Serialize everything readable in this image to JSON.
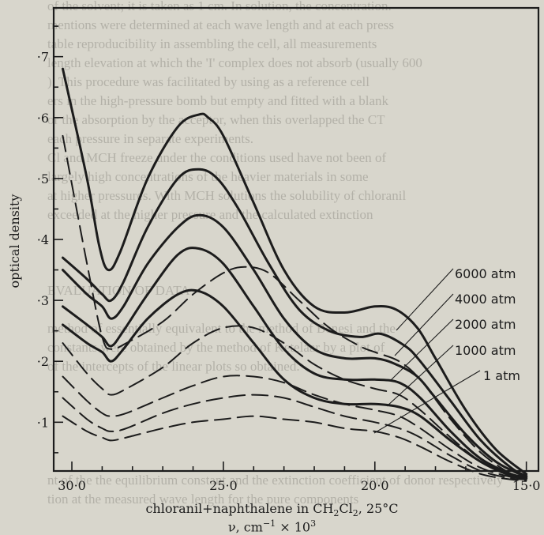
{
  "chart_data": {
    "type": "line",
    "ylabel": "optical density",
    "caption_line1_a": "chloranil+naphthalene in CH",
    "caption_line1_sub2a": "2",
    "caption_line1_b": "Cl",
    "caption_line1_sub2b": "2",
    "caption_line1_c": ", 25°C",
    "xlabel_a": "ν, cm",
    "xlabel_sup1": "−1",
    "xlabel_b": " × 10",
    "xlabel_sup2": "3",
    "xlim": [
      30.6,
      14.6
    ],
    "ylim": [
      0.02,
      0.78
    ],
    "x_ticks": [
      30,
      25,
      20,
      15
    ],
    "x_tick_labels": [
      "30·0",
      "25·0",
      "20·0",
      "15·0"
    ],
    "y_ticks": [
      0.1,
      0.2,
      0.3,
      0.4,
      0.5,
      0.6,
      0.7
    ],
    "y_tick_labels": [
      "·1",
      "·2",
      "·3",
      "·4",
      "·5",
      "·6",
      "·7"
    ],
    "legend": [
      "6000 atm",
      "4000 atm",
      "2000 atm",
      "1000 atm",
      "1 atm"
    ],
    "series": [
      {
        "style": "solid",
        "x": [
          30.3,
          29.5,
          29.1,
          28.8,
          28.4,
          27.5,
          26.5,
          25.8,
          25.5,
          25.0,
          24.0,
          23.0,
          22.0,
          21.0,
          20.0,
          19.3,
          18.6,
          18.0,
          17.0,
          16.0,
          15.0
        ],
        "y": [
          0.68,
          0.5,
          0.39,
          0.35,
          0.38,
          0.5,
          0.585,
          0.605,
          0.6,
          0.57,
          0.46,
          0.35,
          0.29,
          0.28,
          0.29,
          0.285,
          0.255,
          0.205,
          0.12,
          0.055,
          0.015
        ]
      },
      {
        "style": "solid",
        "x": [
          30.3,
          29.5,
          29.0,
          28.7,
          28.3,
          27.5,
          26.5,
          25.8,
          25.2,
          24.5,
          23.5,
          22.5,
          21.5,
          20.5,
          19.8,
          19.0,
          18.5,
          17.5,
          16.5,
          15.5,
          15.0
        ],
        "y": [
          0.37,
          0.335,
          0.31,
          0.3,
          0.33,
          0.42,
          0.5,
          0.515,
          0.5,
          0.45,
          0.36,
          0.285,
          0.25,
          0.24,
          0.245,
          0.225,
          0.2,
          0.135,
          0.07,
          0.025,
          0.012
        ]
      },
      {
        "style": "solid",
        "x": [
          30.3,
          29.5,
          29.0,
          28.7,
          28.3,
          27.5,
          26.5,
          25.8,
          25.0,
          24.0,
          23.0,
          22.0,
          21.0,
          20.0,
          19.3,
          18.6,
          18.0,
          17.0,
          16.0,
          15.0
        ],
        "y": [
          0.35,
          0.31,
          0.29,
          0.27,
          0.29,
          0.36,
          0.42,
          0.44,
          0.42,
          0.35,
          0.27,
          0.22,
          0.205,
          0.205,
          0.195,
          0.175,
          0.14,
          0.08,
          0.035,
          0.01
        ]
      },
      {
        "style": "solid",
        "x": [
          30.3,
          29.5,
          29.0,
          28.7,
          28.3,
          27.5,
          26.5,
          25.8,
          25.0,
          24.0,
          23.0,
          22.0,
          21.0,
          20.0,
          19.2,
          18.5,
          17.5,
          16.5,
          15.5,
          15.0
        ],
        "y": [
          0.29,
          0.26,
          0.24,
          0.225,
          0.25,
          0.31,
          0.375,
          0.385,
          0.36,
          0.29,
          0.22,
          0.18,
          0.17,
          0.17,
          0.165,
          0.14,
          0.085,
          0.04,
          0.015,
          0.01
        ]
      },
      {
        "style": "solid",
        "x": [
          30.3,
          29.5,
          29.0,
          28.7,
          28.3,
          27.5,
          26.5,
          25.8,
          25.0,
          24.0,
          23.0,
          22.0,
          21.0,
          20.0,
          19.2,
          18.5,
          17.5,
          16.5,
          15.5,
          15.0
        ],
        "y": [
          0.26,
          0.23,
          0.215,
          0.2,
          0.22,
          0.27,
          0.31,
          0.315,
          0.29,
          0.23,
          0.17,
          0.14,
          0.13,
          0.13,
          0.125,
          0.11,
          0.07,
          0.035,
          0.012,
          0.008
        ]
      },
      {
        "style": "dashed",
        "x": [
          30.3,
          29.5,
          29.0,
          28.7,
          28.2,
          27.0,
          26.0,
          25.0,
          24.3,
          23.5,
          22.5,
          21.5,
          20.5,
          20.0,
          19.2,
          18.5,
          17.5,
          16.5,
          15.5,
          15.0
        ],
        "y": [
          0.57,
          0.36,
          0.24,
          0.22,
          0.23,
          0.265,
          0.31,
          0.345,
          0.355,
          0.345,
          0.3,
          0.255,
          0.225,
          0.215,
          0.2,
          0.17,
          0.105,
          0.05,
          0.015,
          0.008
        ]
      },
      {
        "style": "dashed",
        "x": [
          30.3,
          29.5,
          29.0,
          28.7,
          28.2,
          27.0,
          26.0,
          25.0,
          24.0,
          23.0,
          22.0,
          21.0,
          20.0,
          19.2,
          18.5,
          17.5,
          16.5,
          15.5,
          15.0
        ],
        "y": [
          0.23,
          0.18,
          0.155,
          0.145,
          0.155,
          0.19,
          0.23,
          0.255,
          0.255,
          0.23,
          0.195,
          0.17,
          0.155,
          0.145,
          0.12,
          0.075,
          0.035,
          0.012,
          0.008
        ]
      },
      {
        "style": "dashed",
        "x": [
          30.3,
          29.5,
          29.0,
          28.7,
          28.2,
          27.0,
          26.0,
          25.0,
          24.0,
          23.0,
          22.0,
          21.0,
          20.0,
          19.2,
          18.5,
          17.5,
          16.5,
          15.5,
          15.0
        ],
        "y": [
          0.175,
          0.135,
          0.115,
          0.11,
          0.115,
          0.14,
          0.16,
          0.175,
          0.175,
          0.165,
          0.145,
          0.13,
          0.12,
          0.11,
          0.09,
          0.055,
          0.025,
          0.01,
          0.007
        ]
      },
      {
        "style": "dashed",
        "x": [
          30.3,
          29.5,
          29.0,
          28.7,
          28.2,
          27.0,
          26.0,
          25.0,
          24.0,
          23.0,
          22.0,
          21.0,
          20.0,
          19.2,
          18.5,
          17.5,
          16.5,
          15.5,
          15.0
        ],
        "y": [
          0.14,
          0.105,
          0.09,
          0.085,
          0.09,
          0.115,
          0.13,
          0.14,
          0.145,
          0.14,
          0.125,
          0.11,
          0.1,
          0.09,
          0.075,
          0.045,
          0.02,
          0.008,
          0.006
        ]
      },
      {
        "style": "dashed",
        "x": [
          30.3,
          29.5,
          29.0,
          28.7,
          28.2,
          27.0,
          26.0,
          25.0,
          24.0,
          23.0,
          22.0,
          21.0,
          20.0,
          19.2,
          18.5,
          17.5,
          16.5,
          15.5,
          15.0
        ],
        "y": [
          0.11,
          0.085,
          0.075,
          0.07,
          0.075,
          0.09,
          0.1,
          0.105,
          0.11,
          0.105,
          0.1,
          0.09,
          0.085,
          0.075,
          0.06,
          0.035,
          0.015,
          0.006,
          0.005
        ]
      }
    ]
  },
  "ghost_text": [
    "of the solvent; it is taken as 1 cm. In solution, the concentration.",
    "mentions were determined at each wave length and at each press",
    "table reproducibility in assembling the cell, all measurements",
    "length elevation at which the 'I' complex does not absorb (usually 600",
    "). This procedure was facilitated by using as a reference cell",
    "ers in the high-pressure bomb but empty and fitted with a blank",
    "or the absorption by the acceptor, when this overlapped the CT",
    "each pressure in separate experiments.",
    "Cl and MCH freeze under the conditions used have not been of",
    "largely high concentrations of the heavier materials in some",
    "at higher pressures. With MCH solutions the solubility of chloranil",
    "exceeded at the higher pressure and the calculated extinction",
    "",
    "",
    "",
    "EVALUATION OF DATA",
    "",
    "method of essentially equivalent to the method of Benesi and the",
    "constants were obtained by the method of Ketelaar by a plot of",
    "of the intercepts of the linear plots so obtained.",
    "",
    "",
    "",
    "",
    "",
    "nt of the the equilibrium constant and the extinction coefficient of donor respectively",
    "tion at the measured wave length for the pure components"
  ]
}
